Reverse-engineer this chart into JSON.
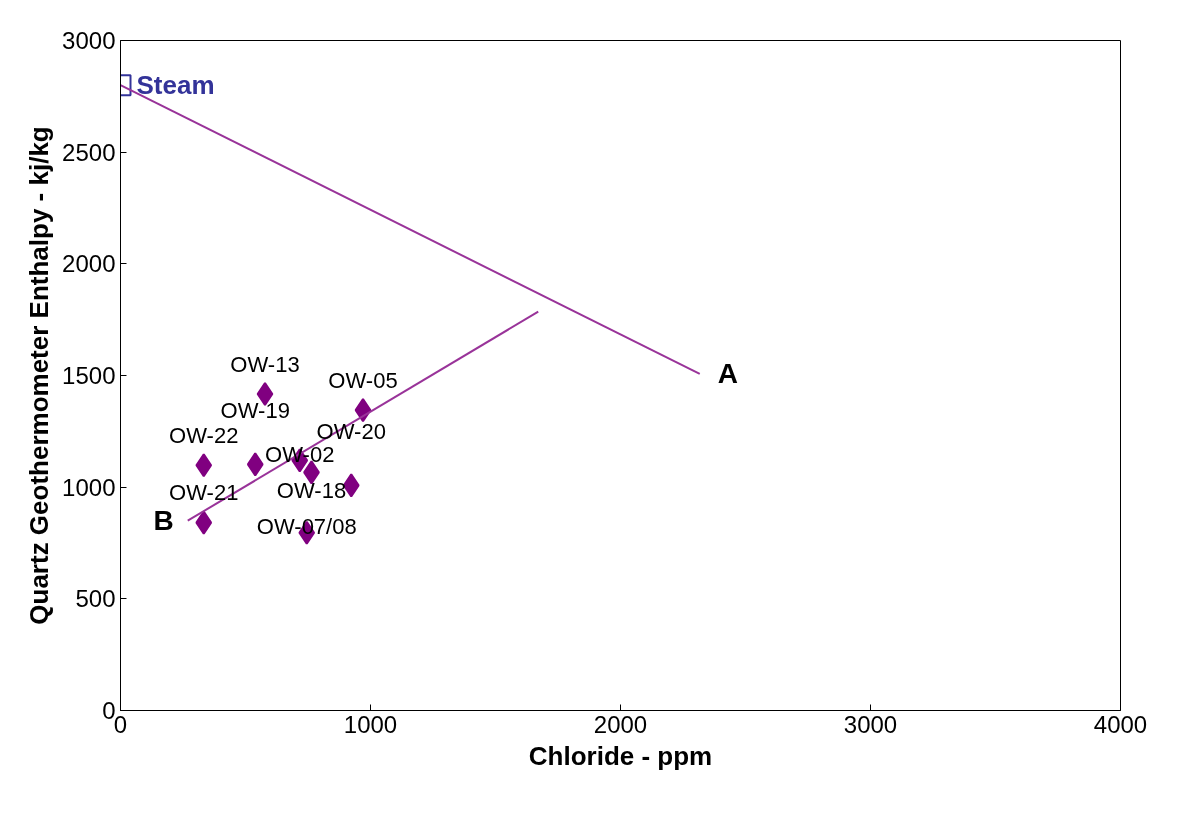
{
  "chart_data": {
    "type": "scatter",
    "xlabel": "Chloride - ppm",
    "ylabel": "Quartz Geothermometer Enthalpy - kj/kg",
    "xlim": [
      0,
      4000
    ],
    "ylim": [
      0,
      3000
    ],
    "xticks": [
      0,
      1000,
      2000,
      3000,
      4000
    ],
    "yticks": [
      0,
      500,
      1000,
      1500,
      2000,
      2500,
      3000
    ],
    "grid": false,
    "series": [
      {
        "marker": "diamond",
        "color": "#800080",
        "x": [
          578,
          970,
          333,
          539,
          717,
          764,
          923,
          333,
          745
        ],
        "values": [
          1417,
          1345,
          1098,
          1102,
          1120,
          1066,
          1008,
          841,
          796
        ],
        "value_labels": [
          "OW-13",
          "OW-05",
          "OW-22",
          "OW-19",
          "OW-02",
          "OW-18",
          "OW-20",
          "OW-21",
          "OW-07/08"
        ]
      },
      {
        "marker": "square",
        "color": "#333399",
        "x": [
          0
        ],
        "values": [
          2800
        ],
        "value_labels": [
          "Steam"
        ]
      },
      {
        "type": "line",
        "color": "#993399",
        "x": [
          0,
          2317
        ],
        "values": [
          2800,
          1507
        ]
      },
      {
        "type": "line",
        "color": "#993399",
        "x": [
          1671,
          269
        ],
        "values": [
          1786,
          850
        ]
      }
    ],
    "annotations": [
      {
        "text": "A",
        "x": 2317,
        "y": 1507
      },
      {
        "text": "B",
        "x": 269,
        "y": 850
      }
    ]
  }
}
